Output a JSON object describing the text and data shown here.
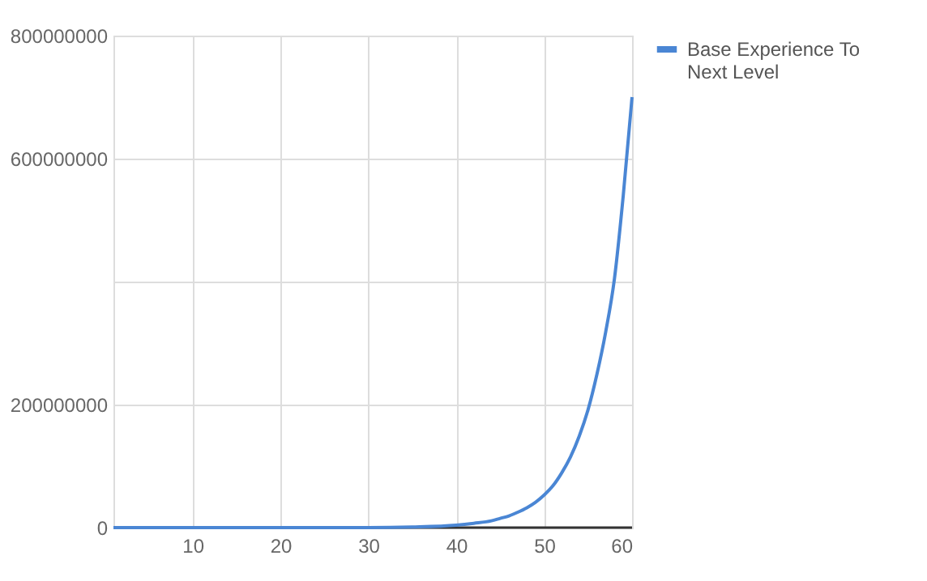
{
  "chart_data": {
    "type": "line",
    "x": [
      1,
      5,
      10,
      15,
      20,
      25,
      30,
      35,
      40,
      42,
      44,
      45,
      46,
      47,
      48,
      49,
      50,
      51,
      52,
      53,
      54,
      55,
      56,
      57,
      58,
      59,
      60
    ],
    "series": [
      {
        "name": "Base Experience To Next Level",
        "color": "#4a86d4",
        "values": [
          0,
          0,
          0,
          0,
          0,
          0,
          0,
          1000000,
          4000000,
          7000000,
          11000000,
          15000000,
          19000000,
          25000000,
          32000000,
          41000000,
          53000000,
          68000000,
          89000000,
          115000000,
          149000000,
          192000000,
          249000000,
          318000000,
          405000000,
          540000000,
          700000000
        ]
      }
    ],
    "xlim": [
      1,
      60
    ],
    "xticks": [
      10,
      20,
      30,
      40,
      50,
      60
    ],
    "ylim": [
      0,
      800000000
    ],
    "yticks": [
      0,
      200000000,
      {
        "value": 400000000,
        "label": null
      },
      600000000,
      800000000
    ],
    "grid": true,
    "legend": "top right",
    "marker": "none",
    "line_style": "solid"
  }
}
